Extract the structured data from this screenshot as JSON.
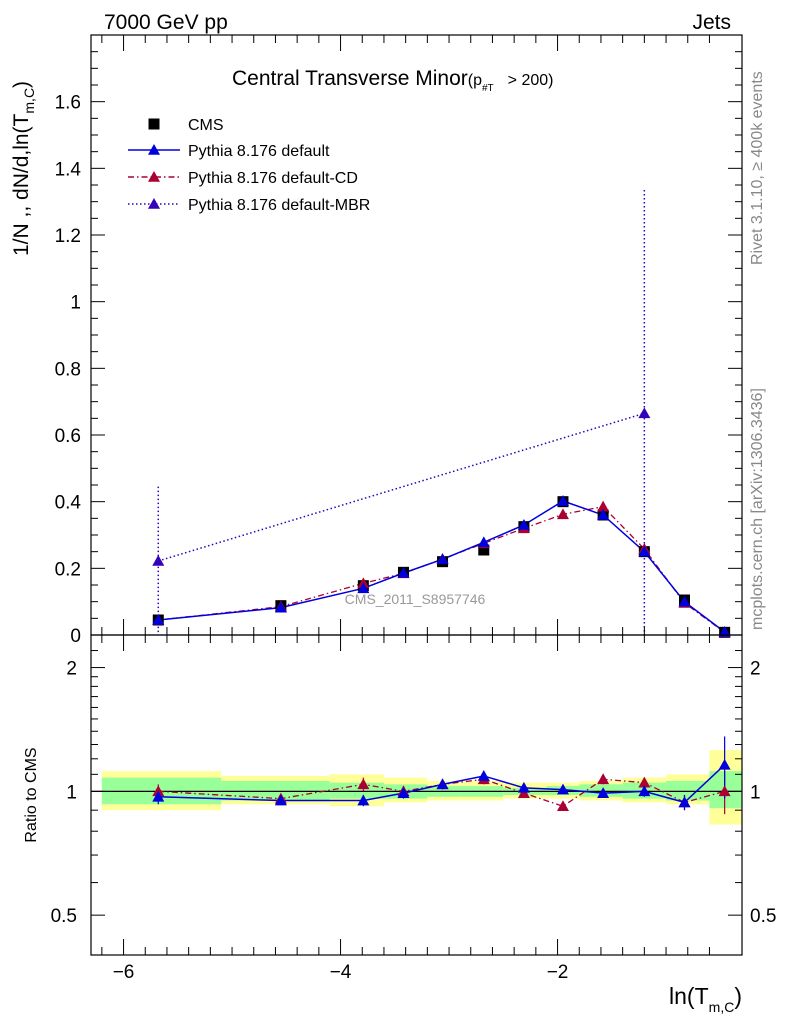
{
  "header": {
    "energy_label": "7000 GeV pp",
    "process_label": "Jets",
    "rivet_label": "Rivet 3.1.10, ≥ 400k events",
    "mcplots_label": "mcplots.cern.ch [arXiv:1306.3436]",
    "analysis_label": "CMS_2011_S8957746"
  },
  "colors": {
    "data": "#000000",
    "default": "#0000dd",
    "default_cd": "#aa0033",
    "default_mbr": "#3300bb",
    "band_inner": "#99ff99",
    "band_outer": "#ffff99",
    "text_gray": "#888888"
  },
  "chart_data": [
    {
      "type": "scatter",
      "title_main": "Central Transverse Minor",
      "title_cut": "(p",
      "title_cut_sub": "#T",
      "title_cut_rest": "> 200)",
      "ylabel_main": "1/N ,, dN/d,ln(T",
      "ylabel_sub": "m,C",
      "ylabel_close": ")",
      "xlabel_main": "ln(T",
      "xlabel_sub": "m,C",
      "xlabel_close": ")",
      "xlim": [
        -6.3,
        -0.3
      ],
      "ylim": [
        0,
        1.8
      ],
      "x_ticks": [
        "−6",
        "−4",
        "−2"
      ],
      "x_tick_values": [
        -6,
        -4,
        -2
      ],
      "y_ticks": [
        "0",
        "0.2",
        "0.4",
        "0.6",
        "0.8",
        "1",
        "1.2",
        "1.4",
        "1.6"
      ],
      "y_tick_values": [
        0,
        0.2,
        0.4,
        0.6,
        0.8,
        1.0,
        1.2,
        1.4,
        1.6
      ],
      "x": [
        -5.68,
        -4.55,
        -3.79,
        -3.42,
        -3.06,
        -2.68,
        -2.31,
        -1.95,
        -1.58,
        -1.2,
        -0.83,
        -0.46
      ],
      "series": [
        {
          "name": "CMS",
          "marker": "square",
          "values": [
            0.045,
            0.088,
            0.148,
            0.188,
            0.22,
            0.255,
            0.325,
            0.4,
            0.36,
            0.25,
            0.105,
            0.008
          ]
        },
        {
          "name": "Pythia 8.176 default",
          "marker": "triangle",
          "line": "solid",
          "values": [
            0.045,
            0.082,
            0.14,
            0.186,
            0.227,
            0.278,
            0.33,
            0.402,
            0.36,
            0.25,
            0.1,
            0.009
          ]
        },
        {
          "name": "Pythia 8.176 default-CD",
          "marker": "triangle",
          "line": "dashdot",
          "values": [
            0.045,
            0.085,
            0.155,
            0.185,
            0.228,
            0.275,
            0.32,
            0.362,
            0.385,
            0.258,
            0.096,
            0.008
          ]
        },
        {
          "name": "Pythia 8.176 default-MBR",
          "marker": "triangle",
          "line": "dotted",
          "points": [
            [
              -5.68,
              0.222
            ],
            [
              -1.2,
              0.665
            ]
          ],
          "errors": [
            [
              0,
              0.445
            ],
            [
              0,
              1.335
            ]
          ]
        }
      ]
    },
    {
      "type": "scatter",
      "ylabel": "Ratio to CMS",
      "xlim": [
        -6.3,
        -0.3
      ],
      "ylim": [
        0.4,
        2.4
      ],
      "log_y": true,
      "y_ticks": [
        "0.5",
        "1",
        "2"
      ],
      "y_tick_values": [
        0.5,
        1,
        2
      ],
      "bins": [
        -6.2,
        -5.1,
        -4.1,
        -3.6,
        -3.2,
        -2.9,
        -2.5,
        -2.1,
        -1.8,
        -1.4,
        -1.0,
        -0.6,
        -0.3
      ],
      "band_inner": [
        [
          0.93,
          1.08
        ],
        [
          0.95,
          1.06
        ],
        [
          0.96,
          1.05
        ],
        [
          0.96,
          1.04
        ],
        [
          0.97,
          1.03
        ],
        [
          0.97,
          1.03
        ],
        [
          0.98,
          1.02
        ],
        [
          0.98,
          1.03
        ],
        [
          0.97,
          1.04
        ],
        [
          0.96,
          1.05
        ],
        [
          0.95,
          1.06
        ],
        [
          0.91,
          1.12
        ]
      ],
      "band_outer": [
        [
          0.9,
          1.12
        ],
        [
          0.93,
          1.09
        ],
        [
          0.92,
          1.1
        ],
        [
          0.94,
          1.08
        ],
        [
          0.95,
          1.06
        ],
        [
          0.95,
          1.06
        ],
        [
          0.96,
          1.05
        ],
        [
          0.96,
          1.05
        ],
        [
          0.95,
          1.06
        ],
        [
          0.94,
          1.08
        ],
        [
          0.93,
          1.1
        ],
        [
          0.83,
          1.26
        ]
      ],
      "series": [
        {
          "name": "Pythia 8.176 default",
          "values": [
            0.97,
            0.95,
            0.95,
            0.99,
            1.04,
            1.09,
            1.02,
            1.01,
            0.99,
            1.0,
            0.94,
            1.16
          ],
          "errors": [
            0.04,
            0.02,
            0.03,
            0.03,
            0.02,
            0.03,
            0.02,
            0.02,
            0.02,
            0.03,
            0.04,
            0.2
          ]
        },
        {
          "name": "Pythia 8.176 default-CD",
          "values": [
            1.0,
            0.96,
            1.04,
            1.0,
            1.04,
            1.07,
            0.99,
            0.92,
            1.07,
            1.05,
            0.94,
            1.0
          ],
          "errors": [
            0.04,
            0.02,
            0.04,
            0.03,
            0.03,
            0.03,
            0.02,
            0.02,
            0.03,
            0.03,
            0.04,
            0.12
          ]
        }
      ]
    }
  ]
}
